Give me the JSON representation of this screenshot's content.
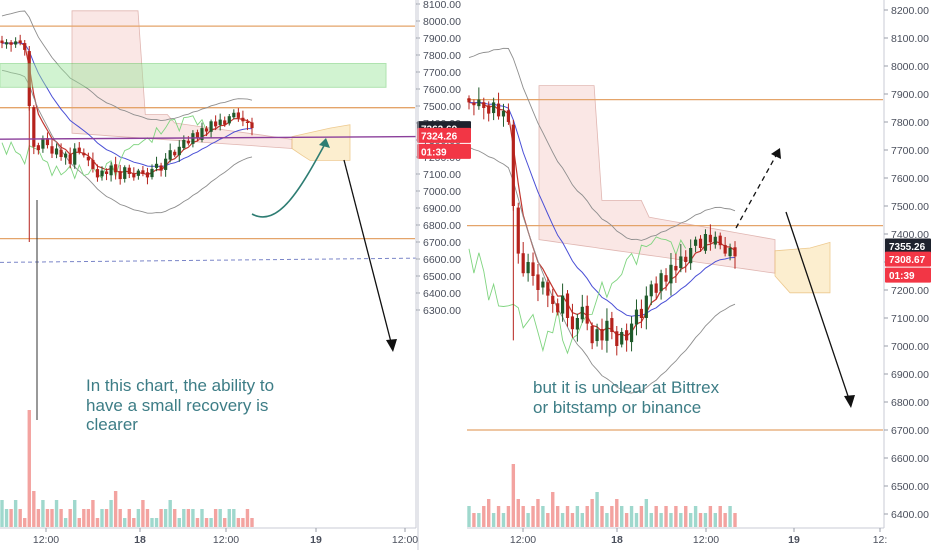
{
  "colors": {
    "up": "#26a69a",
    "down": "#ef5350",
    "candle_up": "#1f5a2a",
    "candle_down": "#b5221c",
    "cloud_red": "#f6d4d0",
    "cloud_yellow": "#fbe9c0",
    "level_line": "#e4a46a",
    "ema": "#c2362f",
    "bollinger": "#8e8e8e",
    "lagging": "#7fd47f",
    "blue": "#4a4fd6",
    "annotation": "#3d7d86",
    "badge_dark": "#1e222d",
    "badge_red": "#f23645",
    "green_box": "#9be59b",
    "purple_line": "#8b3f9b"
  },
  "chart_data": [
    {
      "type": "candlestick",
      "title": "",
      "y_ticks": [
        "8100.00",
        "8000.00",
        "7900.00",
        "7800.00",
        "7700.00",
        "7600.00",
        "7500.00",
        "7400.00",
        "7300.00",
        "7200.00",
        "7100.00",
        "7000.00",
        "6900.00",
        "6800.00",
        "6700.00",
        "6600.00",
        "6500.00",
        "6400.00",
        "6300.00"
      ],
      "x_ticks": [
        "12:00",
        "18",
        "12:00",
        "19",
        "12:00"
      ],
      "ylim": [
        6270,
        8140
      ],
      "price_badges": [
        {
          "value": "7363.69",
          "kind": "last"
        },
        {
          "value": "7324.26",
          "kind": "ref"
        },
        {
          "value": "01:39",
          "kind": "timer"
        }
      ],
      "annotation_lines": [
        "In this chart, the ability to",
        "have a small recovery is",
        "clearer"
      ],
      "horizontal_levels": [
        7970,
        7490,
        6720
      ],
      "supply_zone": [
        7610,
        7750
      ],
      "close_series": [
        7870,
        7875,
        7860,
        7880,
        7870,
        7830,
        7500,
        7260,
        7240,
        7310,
        7270,
        7220,
        7250,
        7200,
        7220,
        7160,
        7250,
        7230,
        7210,
        7180,
        7130,
        7080,
        7120,
        7100,
        7150,
        7110,
        7070,
        7140,
        7100,
        7080,
        7120,
        7100,
        7080,
        7130,
        7160,
        7120,
        7190,
        7240,
        7210,
        7260,
        7300,
        7280,
        7340,
        7310,
        7370,
        7350,
        7410,
        7380,
        7420,
        7390,
        7440,
        7460,
        7430,
        7410,
        7400,
        7370
      ],
      "volume": [
        3,
        2,
        2,
        3,
        2,
        1,
        13,
        4,
        2,
        3,
        2,
        2,
        3,
        2,
        1,
        2,
        3,
        1,
        2,
        2,
        3,
        1,
        2,
        2,
        3,
        4,
        2,
        1,
        2,
        1,
        2,
        3,
        2,
        1,
        1,
        2,
        2,
        3,
        2,
        1,
        2,
        2,
        2,
        1,
        2,
        1,
        1,
        2,
        2,
        1,
        2,
        2,
        1,
        1,
        2,
        1
      ]
    },
    {
      "type": "candlestick",
      "title": "",
      "y_ticks": [
        "8200.00",
        "8100.00",
        "8000.00",
        "7900.00",
        "7800.00",
        "7700.00",
        "7600.00",
        "7500.00",
        "7400.00",
        "7300.00",
        "7200.00",
        "7100.00",
        "7000.00",
        "6900.00",
        "6800.00",
        "6700.00",
        "6600.00",
        "6500.00",
        "6400.00"
      ],
      "x_ticks": [
        "12:00",
        "18",
        "12:00",
        "19",
        "12:"
      ],
      "ylim": [
        6360,
        8235
      ],
      "price_badges": [
        {
          "value": "7355.26",
          "kind": "last"
        },
        {
          "value": "7308.67",
          "kind": "ref"
        },
        {
          "value": "01:39",
          "kind": "timer"
        }
      ],
      "annotation_lines": [
        "but it is unclear at Bittrex",
        "or bitstamp or binance"
      ],
      "horizontal_levels": [
        7880,
        7430,
        6700
      ],
      "close_series": [
        7870,
        7860,
        7880,
        7850,
        7830,
        7870,
        7820,
        7840,
        7800,
        7500,
        7330,
        7260,
        7300,
        7250,
        7200,
        7230,
        7180,
        7150,
        7120,
        7180,
        7100,
        7060,
        7100,
        7140,
        7080,
        7010,
        7060,
        7020,
        7090,
        7050,
        7000,
        7050,
        7020,
        7080,
        7130,
        7100,
        7180,
        7220,
        7190,
        7260,
        7230,
        7290,
        7270,
        7320,
        7300,
        7350,
        7380,
        7350,
        7400,
        7370,
        7390,
        7360,
        7330,
        7350,
        7320
      ],
      "volume": [
        3,
        2,
        2,
        3,
        4,
        2,
        3,
        2,
        3,
        9,
        4,
        3,
        2,
        3,
        4,
        3,
        2,
        5,
        3,
        2,
        3,
        2,
        3,
        2,
        3,
        4,
        5,
        3,
        2,
        3,
        4,
        3,
        2,
        3,
        2,
        3,
        4,
        2,
        3,
        2,
        3,
        2,
        3,
        2,
        3,
        2,
        3,
        2,
        2,
        3,
        2,
        3,
        2,
        3,
        2
      ]
    }
  ]
}
